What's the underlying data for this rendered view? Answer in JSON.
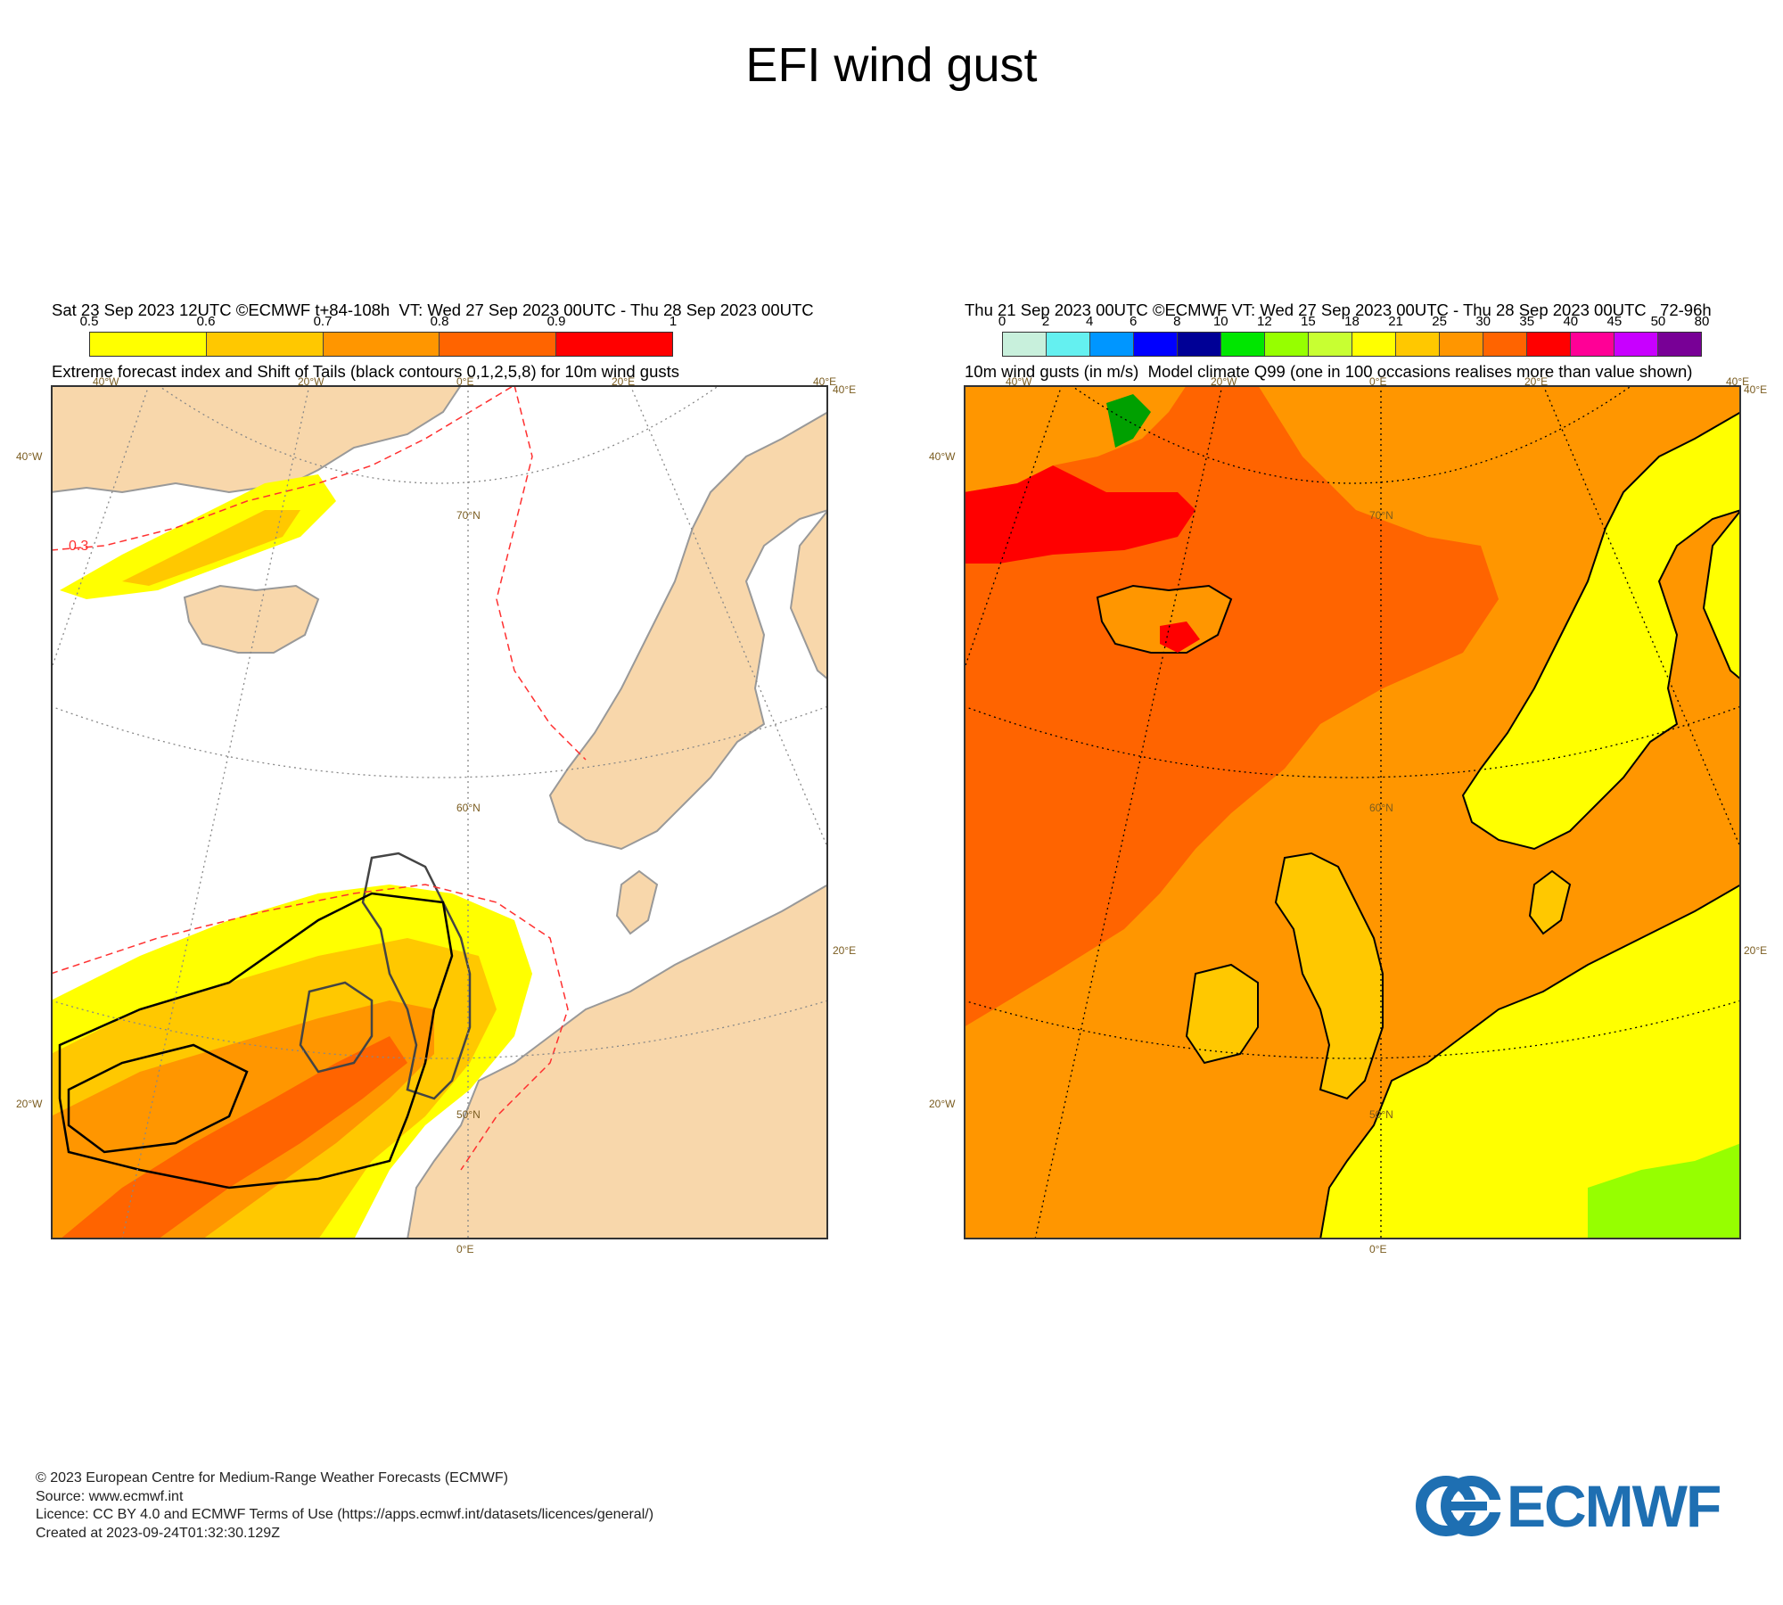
{
  "title": "EFI wind gust",
  "left_panel": {
    "header_line1": "Sat 23 Sep 2023 12UTC ©ECMWF t+84-108h  VT: Wed 27 Sep 2023 00UTC - Thu 28 Sep 2023 00UTC",
    "header_line2": "Extreme forecast index and Shift of Tails (black contours 0,1,2,5,8) for 10m wind gusts",
    "colorbar": {
      "ticks": [
        "0.5",
        "0.6",
        "0.7",
        "0.8",
        "0.9",
        "1"
      ],
      "colors": [
        "#ffff00",
        "#ffc800",
        "#ff9600",
        "#ff6400",
        "#ff0000"
      ]
    },
    "map_labels": {
      "lon_40w": "40°W",
      "lon_20w": "20°W",
      "lon_0": "0°E",
      "lon_20e": "20°E",
      "lon_40e": "40°E",
      "lat_70": "70°N",
      "lat_60": "60°N",
      "lat_50": "50°N",
      "contour_03": "0.3"
    },
    "side_labels": {
      "left_40w": "40°W",
      "left_20w": "20°W",
      "right_40e": "40°E",
      "right_20e": "20°E"
    }
  },
  "right_panel": {
    "header_line1": "Thu 21 Sep 2023 00UTC ©ECMWF VT: Wed 27 Sep 2023 00UTC - Thu 28 Sep 2023 00UTC   72-96h",
    "header_line2": "10m wind gusts (in m/s)  Model climate Q99 (one in 100 occasions realises more than value shown)",
    "colorbar": {
      "ticks": [
        "0",
        "2",
        "4",
        "6",
        "8",
        "10",
        "12",
        "15",
        "18",
        "21",
        "25",
        "30",
        "35",
        "40",
        "45",
        "50",
        "80"
      ],
      "colors": [
        "#c8f0dc",
        "#64f0f0",
        "#0096ff",
        "#0000ff",
        "#000096",
        "#00e600",
        "#96ff00",
        "#c8ff32",
        "#ffff00",
        "#ffc800",
        "#ff9600",
        "#ff6400",
        "#ff0000",
        "#ff0096",
        "#c800ff",
        "#780096"
      ]
    },
    "map_labels": {
      "lon_40w": "40°W",
      "lon_20w": "20°W",
      "lon_0": "0°E",
      "lon_20e": "20°E",
      "lon_40e": "40°E",
      "lat_70": "70°N",
      "lat_60": "60°N",
      "lat_50": "50°N"
    },
    "side_labels": {
      "left_40w": "40°W",
      "left_20w": "20°W",
      "right_40e": "40°E",
      "right_20e": "20°E"
    }
  },
  "footer": {
    "line1": "© 2023 European Centre for Medium-Range Weather Forecasts (ECMWF)",
    "line2": "Source: www.ecmwf.int",
    "line3": "Licence: CC BY 4.0 and ECMWF Terms of Use (https://apps.ecmwf.int/datasets/licences/general/)",
    "line4": "Created at 2023-09-24T01:32:30.129Z"
  },
  "logo": {
    "text": "ECMWF",
    "color": "#1e6fb2"
  },
  "colors": {
    "land": "#f8d7ab",
    "sea": "#ffffff",
    "coast": "#000000",
    "grid": "#888888",
    "contour_red": "#ff3030"
  }
}
